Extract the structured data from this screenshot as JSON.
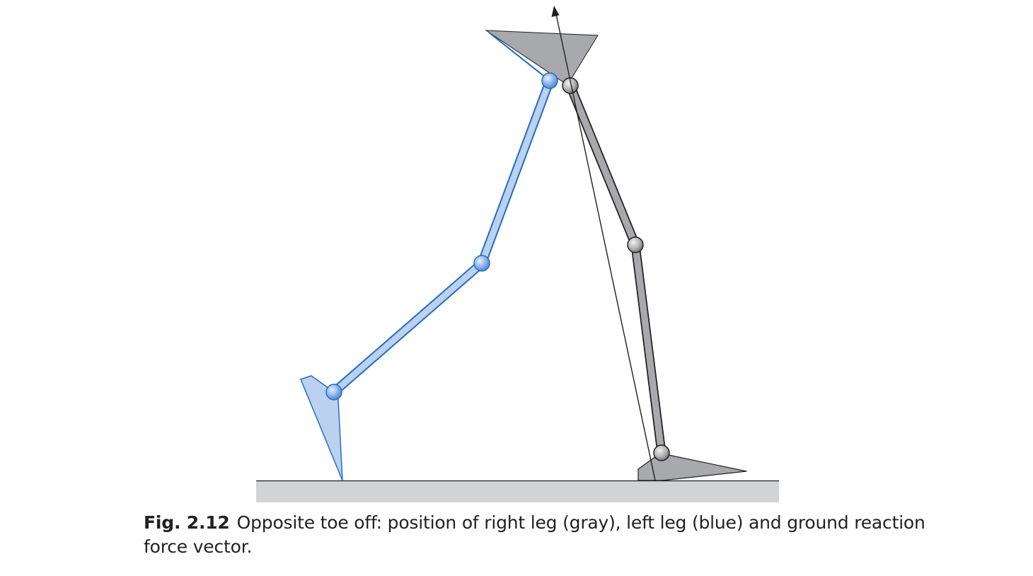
{
  "caption": {
    "label": "Fig. 2.12",
    "text": "Opposite toe off: position of right leg (gray), left leg (blue) and ground reaction force vector."
  },
  "legs": {
    "right": {
      "color_name": "gray",
      "fill": "#a7a9ac",
      "stroke": "#231f20"
    },
    "left": {
      "color_name": "blue",
      "fill": "#bcd0ef",
      "stroke": "#1f6fc0"
    }
  },
  "ground": {
    "fill": "#d1d3d4"
  },
  "force_vector": {
    "stroke": "#231f20"
  }
}
